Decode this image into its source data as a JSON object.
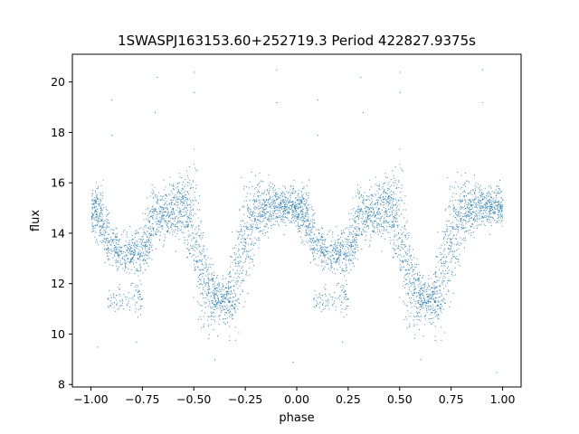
{
  "chart_data": {
    "type": "scatter",
    "title": "1SWASPJ163153.60+252719.3 Period 422827.9375s",
    "xlabel": "phase",
    "ylabel": "flux",
    "xlim": [
      -1.09,
      1.09
    ],
    "ylim": [
      7.9,
      21.1
    ],
    "xticks": [
      -1.0,
      -0.75,
      -0.5,
      -0.25,
      0.0,
      0.25,
      0.5,
      0.75,
      1.0
    ],
    "xtick_labels": [
      "−1.00",
      "−0.75",
      "−0.50",
      "−0.25",
      "0.00",
      "0.25",
      "0.50",
      "0.75",
      "1.00"
    ],
    "yticks": [
      8,
      10,
      12,
      14,
      16,
      18,
      20
    ],
    "ytick_labels": [
      "8",
      "10",
      "12",
      "14",
      "16",
      "18",
      "20"
    ],
    "grid": false,
    "marker_color": "#1f77b4",
    "series": [
      {
        "phase_period": 1.0,
        "profile": {
          "phase": [
            0.0,
            0.05,
            0.1,
            0.15,
            0.2,
            0.25,
            0.3,
            0.35,
            0.4,
            0.45,
            0.5,
            0.55,
            0.6,
            0.65,
            0.7,
            0.75,
            0.8,
            0.85,
            0.9,
            0.95,
            1.0
          ],
          "flux_center": [
            15.0,
            14.6,
            13.5,
            13.3,
            13.2,
            13.3,
            14.6,
            14.8,
            14.9,
            15.1,
            14.0,
            12.0,
            11.4,
            11.3,
            12.0,
            14.0,
            14.8,
            15.0,
            15.1,
            15.2,
            15.0
          ],
          "flux_spread": [
            0.4,
            0.6,
            0.5,
            0.4,
            0.4,
            0.5,
            0.6,
            0.5,
            0.5,
            0.6,
            1.2,
            1.0,
            0.5,
            0.4,
            1.0,
            1.2,
            0.6,
            0.5,
            0.4,
            0.4,
            0.4
          ]
        },
        "secondary_branch": {
          "phase_range": [
            0.08,
            0.25
          ],
          "flux_center": 11.4
        },
        "outliers": [
          {
            "x": -0.9,
            "y": 19.3
          },
          {
            "x": -0.9,
            "y": 17.9
          },
          {
            "x": -0.68,
            "y": 20.2
          },
          {
            "x": -0.69,
            "y": 18.8
          },
          {
            "x": -0.5,
            "y": 20.4
          },
          {
            "x": -0.5,
            "y": 19.6
          },
          {
            "x": -0.1,
            "y": 20.5
          },
          {
            "x": -0.1,
            "y": 19.2
          },
          {
            "x": 0.1,
            "y": 19.3
          },
          {
            "x": 0.1,
            "y": 17.9
          },
          {
            "x": 0.31,
            "y": 20.2
          },
          {
            "x": 0.32,
            "y": 18.8
          },
          {
            "x": 0.5,
            "y": 20.4
          },
          {
            "x": 0.5,
            "y": 19.6
          },
          {
            "x": 0.9,
            "y": 20.5
          },
          {
            "x": 0.9,
            "y": 19.2
          },
          {
            "x": -0.97,
            "y": 9.5
          },
          {
            "x": -0.78,
            "y": 9.7
          },
          {
            "x": -0.4,
            "y": 9.0
          },
          {
            "x": -0.02,
            "y": 8.9
          },
          {
            "x": 0.22,
            "y": 9.7
          },
          {
            "x": 0.6,
            "y": 9.0
          },
          {
            "x": 0.97,
            "y": 8.5
          }
        ]
      }
    ]
  }
}
